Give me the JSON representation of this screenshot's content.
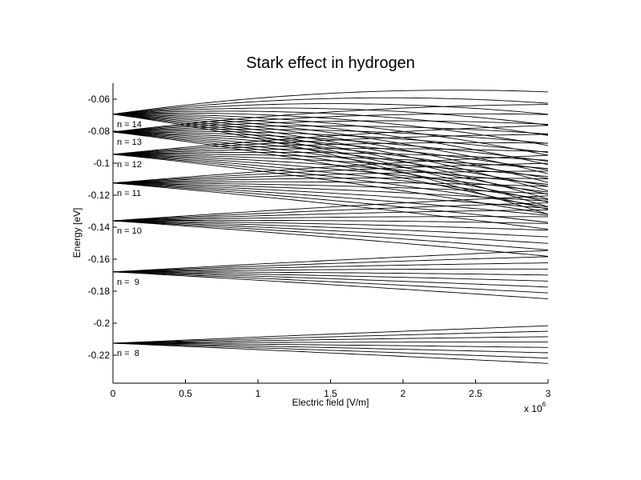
{
  "chart_data": {
    "type": "line",
    "title": "Stark effect in hydrogen",
    "xlabel": "Electric field [V/m]",
    "ylabel": "Energy [eV]",
    "x_multiplier_label": "x 10",
    "x_multiplier_exponent": "6",
    "xlim": [
      0,
      3
    ],
    "ylim": [
      -0.2375,
      -0.05
    ],
    "xticks": [
      0,
      0.5,
      1,
      1.5,
      2,
      2.5,
      3
    ],
    "xtick_labels": [
      "0",
      "0.5",
      "1",
      "1.5",
      "2",
      "2.5",
      "3"
    ],
    "yticks": [
      -0.06,
      -0.08,
      -0.1,
      -0.12,
      -0.14,
      -0.16,
      -0.18,
      -0.2,
      -0.22
    ],
    "ytick_labels": [
      "-0.06",
      "-0.08",
      "-0.1",
      "-0.12",
      "-0.14",
      "-0.16",
      "-0.18",
      "-0.2",
      "-0.22"
    ],
    "grid": false,
    "legend": "none",
    "line_color": "#000000",
    "model": {
      "description": "E(n,k,F) = -13.6/n^2 + A*n*k*F - C*n^4*(17n^2 - 3k^2 + 19)/16 * F^2, k = -(n-1)..(n-1) step 2, F in units of 1e6 V/m",
      "A": 7e-05,
      "C": 3.95e-10,
      "rydberg_eV": 13.6
    },
    "levels": [
      {
        "n": 8,
        "zero_field_energy": -0.2125,
        "label": "n =  8"
      },
      {
        "n": 9,
        "zero_field_energy": -0.1679,
        "label": "n =  9"
      },
      {
        "n": 10,
        "zero_field_energy": -0.136,
        "label": "n = 10"
      },
      {
        "n": 11,
        "zero_field_energy": -0.1124,
        "label": "n = 11"
      },
      {
        "n": 12,
        "zero_field_energy": -0.0944,
        "label": "n = 12"
      },
      {
        "n": 13,
        "zero_field_energy": -0.0805,
        "label": "n = 13"
      },
      {
        "n": 14,
        "zero_field_energy": -0.0694,
        "label": "n = 14"
      }
    ],
    "annotations": [
      "n = 14",
      "n = 13",
      "n = 12",
      "n = 11",
      "n = 10",
      "n =  9",
      "n =  8"
    ]
  }
}
